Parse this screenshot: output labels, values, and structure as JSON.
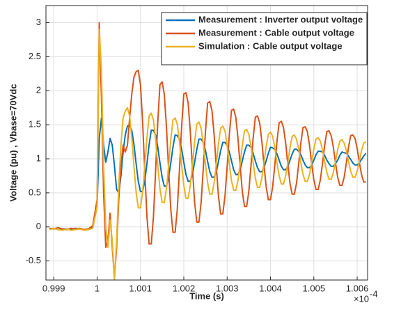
{
  "chart_data": {
    "type": "line",
    "xlabel": "Time (s)",
    "ylabel": "Voltage (pu) , Vbase=70Vdc",
    "x_exponent_base": "×10",
    "x_exponent": "-4",
    "xlim": [
      0.99882,
      1.00624
    ],
    "ylim": [
      -0.78,
      3.25
    ],
    "xticks": [
      0.999,
      1,
      1.001,
      1.002,
      1.003,
      1.004,
      1.005,
      1.006
    ],
    "yticks": [
      -0.5,
      0,
      0.5,
      1,
      1.5,
      2,
      2.5,
      3
    ],
    "grid": true,
    "legend": "upper right",
    "x": [
      0.9989,
      0.999,
      0.9991,
      0.9992,
      0.9993,
      0.9994,
      0.9995,
      0.9996,
      0.9997,
      0.9998,
      0.9999,
      1,
      1.00005,
      1.0001,
      1.00015,
      1.0002,
      1.00025,
      1.0003,
      1.00035,
      1.0004,
      1.00045,
      1.0005,
      1.00055,
      1.0006,
      1.00065,
      1.0007,
      1.00075,
      1.0008,
      1.00085,
      1.0009,
      1.00095,
      1.001,
      1.00105,
      1.0011,
      1.00115,
      1.0012,
      1.00125,
      1.0013,
      1.00135,
      1.0014,
      1.00145,
      1.0015,
      1.00155,
      1.0016,
      1.00165,
      1.0017,
      1.00175,
      1.0018,
      1.00185,
      1.0019,
      1.00195,
      1.002,
      1.00205,
      1.0021,
      1.00215,
      1.0022,
      1.00225,
      1.0023,
      1.00235,
      1.0024,
      1.00245,
      1.0025,
      1.00255,
      1.0026,
      1.00265,
      1.0027,
      1.00275,
      1.0028,
      1.00285,
      1.0029,
      1.00295,
      1.003,
      1.00305,
      1.0031,
      1.00315,
      1.0032,
      1.00325,
      1.0033,
      1.00335,
      1.0034,
      1.00345,
      1.0035,
      1.00355,
      1.0036,
      1.00365,
      1.0037,
      1.00375,
      1.0038,
      1.00385,
      1.0039,
      1.00395,
      1.004,
      1.00405,
      1.0041,
      1.00415,
      1.0042,
      1.00425,
      1.0043,
      1.00435,
      1.0044,
      1.00445,
      1.0045,
      1.00455,
      1.0046,
      1.00465,
      1.0047,
      1.00475,
      1.0048,
      1.00485,
      1.0049,
      1.00495,
      1.005,
      1.00505,
      1.0051,
      1.00515,
      1.0052,
      1.00525,
      1.0053,
      1.00535,
      1.0054,
      1.00545,
      1.0055,
      1.00555,
      1.0056,
      1.00565,
      1.0057,
      1.00575,
      1.0058,
      1.00585,
      1.0059,
      1.00595,
      1.006,
      1.00605,
      1.0061,
      1.00615,
      1.0062
    ],
    "series": [
      {
        "name": "Measurement : Inverter output voltage",
        "color": "#0072BD",
        "values": [
          -0.03,
          -0.02,
          -0.04,
          -0.03,
          -0.03,
          -0.04,
          -0.02,
          -0.03,
          -0.04,
          -0.03,
          0.0,
          0.3,
          1.3,
          1.6,
          1.2,
          0.95,
          1.1,
          1.3,
          1.2,
          0.9,
          0.55,
          0.5,
          0.75,
          1.1,
          1.35,
          1.48,
          1.5,
          1.42,
          1.21,
          0.93,
          0.67,
          0.52,
          0.52,
          0.67,
          0.93,
          1.21,
          1.42,
          1.42,
          1.35,
          1.17,
          0.94,
          0.73,
          0.6,
          0.6,
          0.73,
          0.94,
          1.17,
          1.35,
          1.34,
          1.29,
          1.14,
          0.95,
          0.77,
          0.67,
          0.67,
          0.77,
          0.95,
          1.14,
          1.29,
          1.29,
          1.24,
          1.12,
          0.96,
          0.81,
          0.73,
          0.73,
          0.81,
          0.96,
          1.12,
          1.24,
          1.24,
          1.2,
          1.1,
          0.97,
          0.84,
          0.77,
          0.77,
          0.84,
          0.97,
          1.1,
          1.2,
          1.2,
          1.17,
          1.08,
          0.97,
          0.87,
          0.81,
          0.81,
          0.87,
          0.97,
          1.08,
          1.17,
          1.16,
          1.14,
          1.07,
          0.98,
          0.89,
          0.84,
          0.84,
          0.89,
          0.98,
          1.07,
          1.14,
          1.14,
          1.11,
          1.06,
          0.98,
          0.91,
          0.87,
          0.87,
          0.91,
          0.98,
          1.06,
          1.11,
          1.11,
          1.1,
          1.05,
          0.98,
          0.93,
          0.89,
          0.89,
          0.93,
          0.98,
          1.05,
          1.1,
          1.09,
          1.08,
          1.04,
          0.99,
          0.94,
          0.91,
          0.91,
          0.94,
          0.99,
          1.04,
          1.08
        ]
      },
      {
        "name": "Measurement : Cable output voltage",
        "color": "#D95319",
        "values": [
          -0.02,
          -0.03,
          -0.01,
          -0.03,
          -0.04,
          -0.02,
          -0.03,
          -0.02,
          -0.04,
          -0.03,
          0.02,
          0.4,
          3.0,
          1.9,
          0.5,
          -0.3,
          -0.2,
          0.2,
          -0.3,
          -0.75,
          -0.3,
          0.4,
          0.9,
          1.2,
          1.1,
          1.2,
          1.6,
          1.95,
          2.2,
          2.28,
          2.3,
          2.09,
          1.54,
          0.82,
          0.15,
          -0.25,
          -0.25,
          0.15,
          0.82,
          1.54,
          2.09,
          2.13,
          1.95,
          1.47,
          0.84,
          0.26,
          -0.08,
          -0.08,
          0.26,
          0.84,
          1.47,
          1.95,
          1.97,
          1.82,
          1.4,
          0.86,
          0.36,
          0.07,
          0.07,
          0.36,
          0.86,
          1.4,
          1.82,
          1.84,
          1.71,
          1.35,
          0.88,
          0.45,
          0.19,
          0.19,
          0.45,
          0.88,
          1.35,
          1.71,
          1.73,
          1.61,
          1.3,
          0.9,
          0.52,
          0.3,
          0.3,
          0.52,
          0.9,
          1.3,
          1.61,
          1.63,
          1.53,
          1.26,
          0.91,
          0.59,
          0.4,
          0.4,
          0.59,
          0.91,
          1.26,
          1.53,
          1.55,
          1.46,
          1.23,
          0.92,
          0.64,
          0.48,
          0.48,
          0.64,
          0.92,
          1.23,
          1.46,
          1.47,
          1.4,
          1.2,
          0.93,
          0.69,
          0.55,
          0.55,
          0.69,
          0.93,
          1.2,
          1.4,
          1.41,
          1.34,
          1.17,
          0.94,
          0.73,
          0.61,
          0.61,
          0.73,
          0.94,
          1.17,
          1.34,
          1.35,
          1.3,
          1.15,
          0.95,
          0.77,
          0.66,
          0.66
        ]
      },
      {
        "name": "Simulation : Cable output voltage",
        "color": "#EDB120",
        "values": [
          -0.04,
          -0.02,
          -0.04,
          -0.05,
          -0.03,
          -0.05,
          -0.04,
          -0.03,
          -0.05,
          -0.04,
          -0.02,
          0.3,
          2.9,
          2.3,
          0.9,
          0.0,
          -0.3,
          0.1,
          -0.2,
          -0.78,
          -0.2,
          0.6,
          1.2,
          1.6,
          1.7,
          1.75,
          1.63,
          1.31,
          0.89,
          0.51,
          0.28,
          0.28,
          0.51,
          0.89,
          1.31,
          1.63,
          1.67,
          1.57,
          1.28,
          0.9,
          0.56,
          0.36,
          0.36,
          0.56,
          0.9,
          1.28,
          1.57,
          1.6,
          1.51,
          1.25,
          0.91,
          0.61,
          0.42,
          0.42,
          0.61,
          0.91,
          1.25,
          1.51,
          1.54,
          1.45,
          1.22,
          0.92,
          0.65,
          0.48,
          0.48,
          0.65,
          0.92,
          1.22,
          1.45,
          1.48,
          1.41,
          1.2,
          0.93,
          0.68,
          0.54,
          0.54,
          0.68,
          0.93,
          1.2,
          1.41,
          1.43,
          1.36,
          1.18,
          0.94,
          0.72,
          0.58,
          0.58,
          0.72,
          0.94,
          1.18,
          1.36,
          1.39,
          1.33,
          1.16,
          0.94,
          0.75,
          0.63,
          0.63,
          0.75,
          0.94,
          1.16,
          1.33,
          1.35,
          1.29,
          1.14,
          0.95,
          0.77,
          0.67,
          0.67,
          0.77,
          0.95,
          1.14,
          1.29,
          1.31,
          1.26,
          1.13,
          0.96,
          0.8,
          0.7,
          0.7,
          0.8,
          0.96,
          1.13,
          1.26,
          1.28,
          1.23,
          1.12,
          0.96,
          0.82,
          0.73,
          0.73,
          0.82,
          0.96,
          1.12,
          1.23,
          1.25
        ]
      }
    ]
  }
}
